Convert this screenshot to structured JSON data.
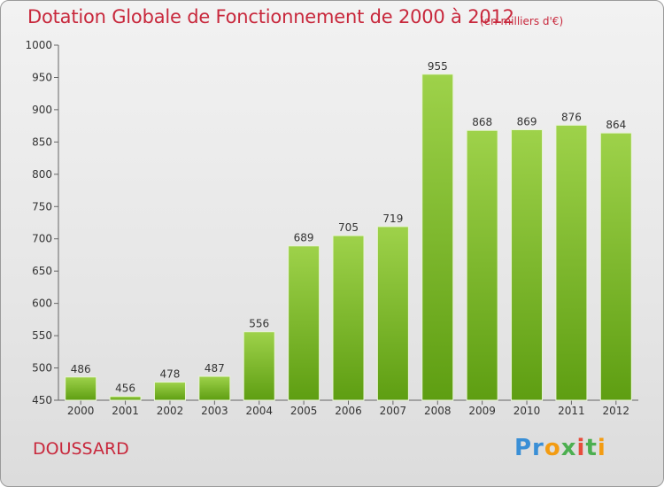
{
  "header": {
    "title": "Dotation Globale de Fonctionnement de 2000 à 2012",
    "subtitle": "(en milliers d'€)"
  },
  "footer": {
    "town": "DOUSSARD",
    "logo_text": "Proxiti"
  },
  "colors": {
    "accent": "#c8283c",
    "bar_top": "#9ed24a",
    "bar_bottom": "#5e9e12"
  },
  "chart_data": {
    "type": "bar",
    "title": "Dotation Globale de Fonctionnement de 2000 à 2012",
    "subtitle": "(en milliers d'€)",
    "xlabel": "",
    "ylabel": "",
    "ylim": [
      450,
      1000
    ],
    "yticks": [
      450,
      500,
      550,
      600,
      650,
      700,
      750,
      800,
      850,
      900,
      950,
      1000
    ],
    "grid": false,
    "categories": [
      "2000",
      "2001",
      "2002",
      "2003",
      "2004",
      "2005",
      "2006",
      "2007",
      "2008",
      "2009",
      "2010",
      "2011",
      "2012"
    ],
    "values": [
      486,
      456,
      478,
      487,
      556,
      689,
      705,
      719,
      955,
      868,
      869,
      876,
      864
    ],
    "data_labels": [
      "486",
      "456",
      "478",
      "487",
      "556",
      "689",
      "705",
      "719",
      "955",
      "868",
      "869",
      "876",
      "864"
    ]
  }
}
